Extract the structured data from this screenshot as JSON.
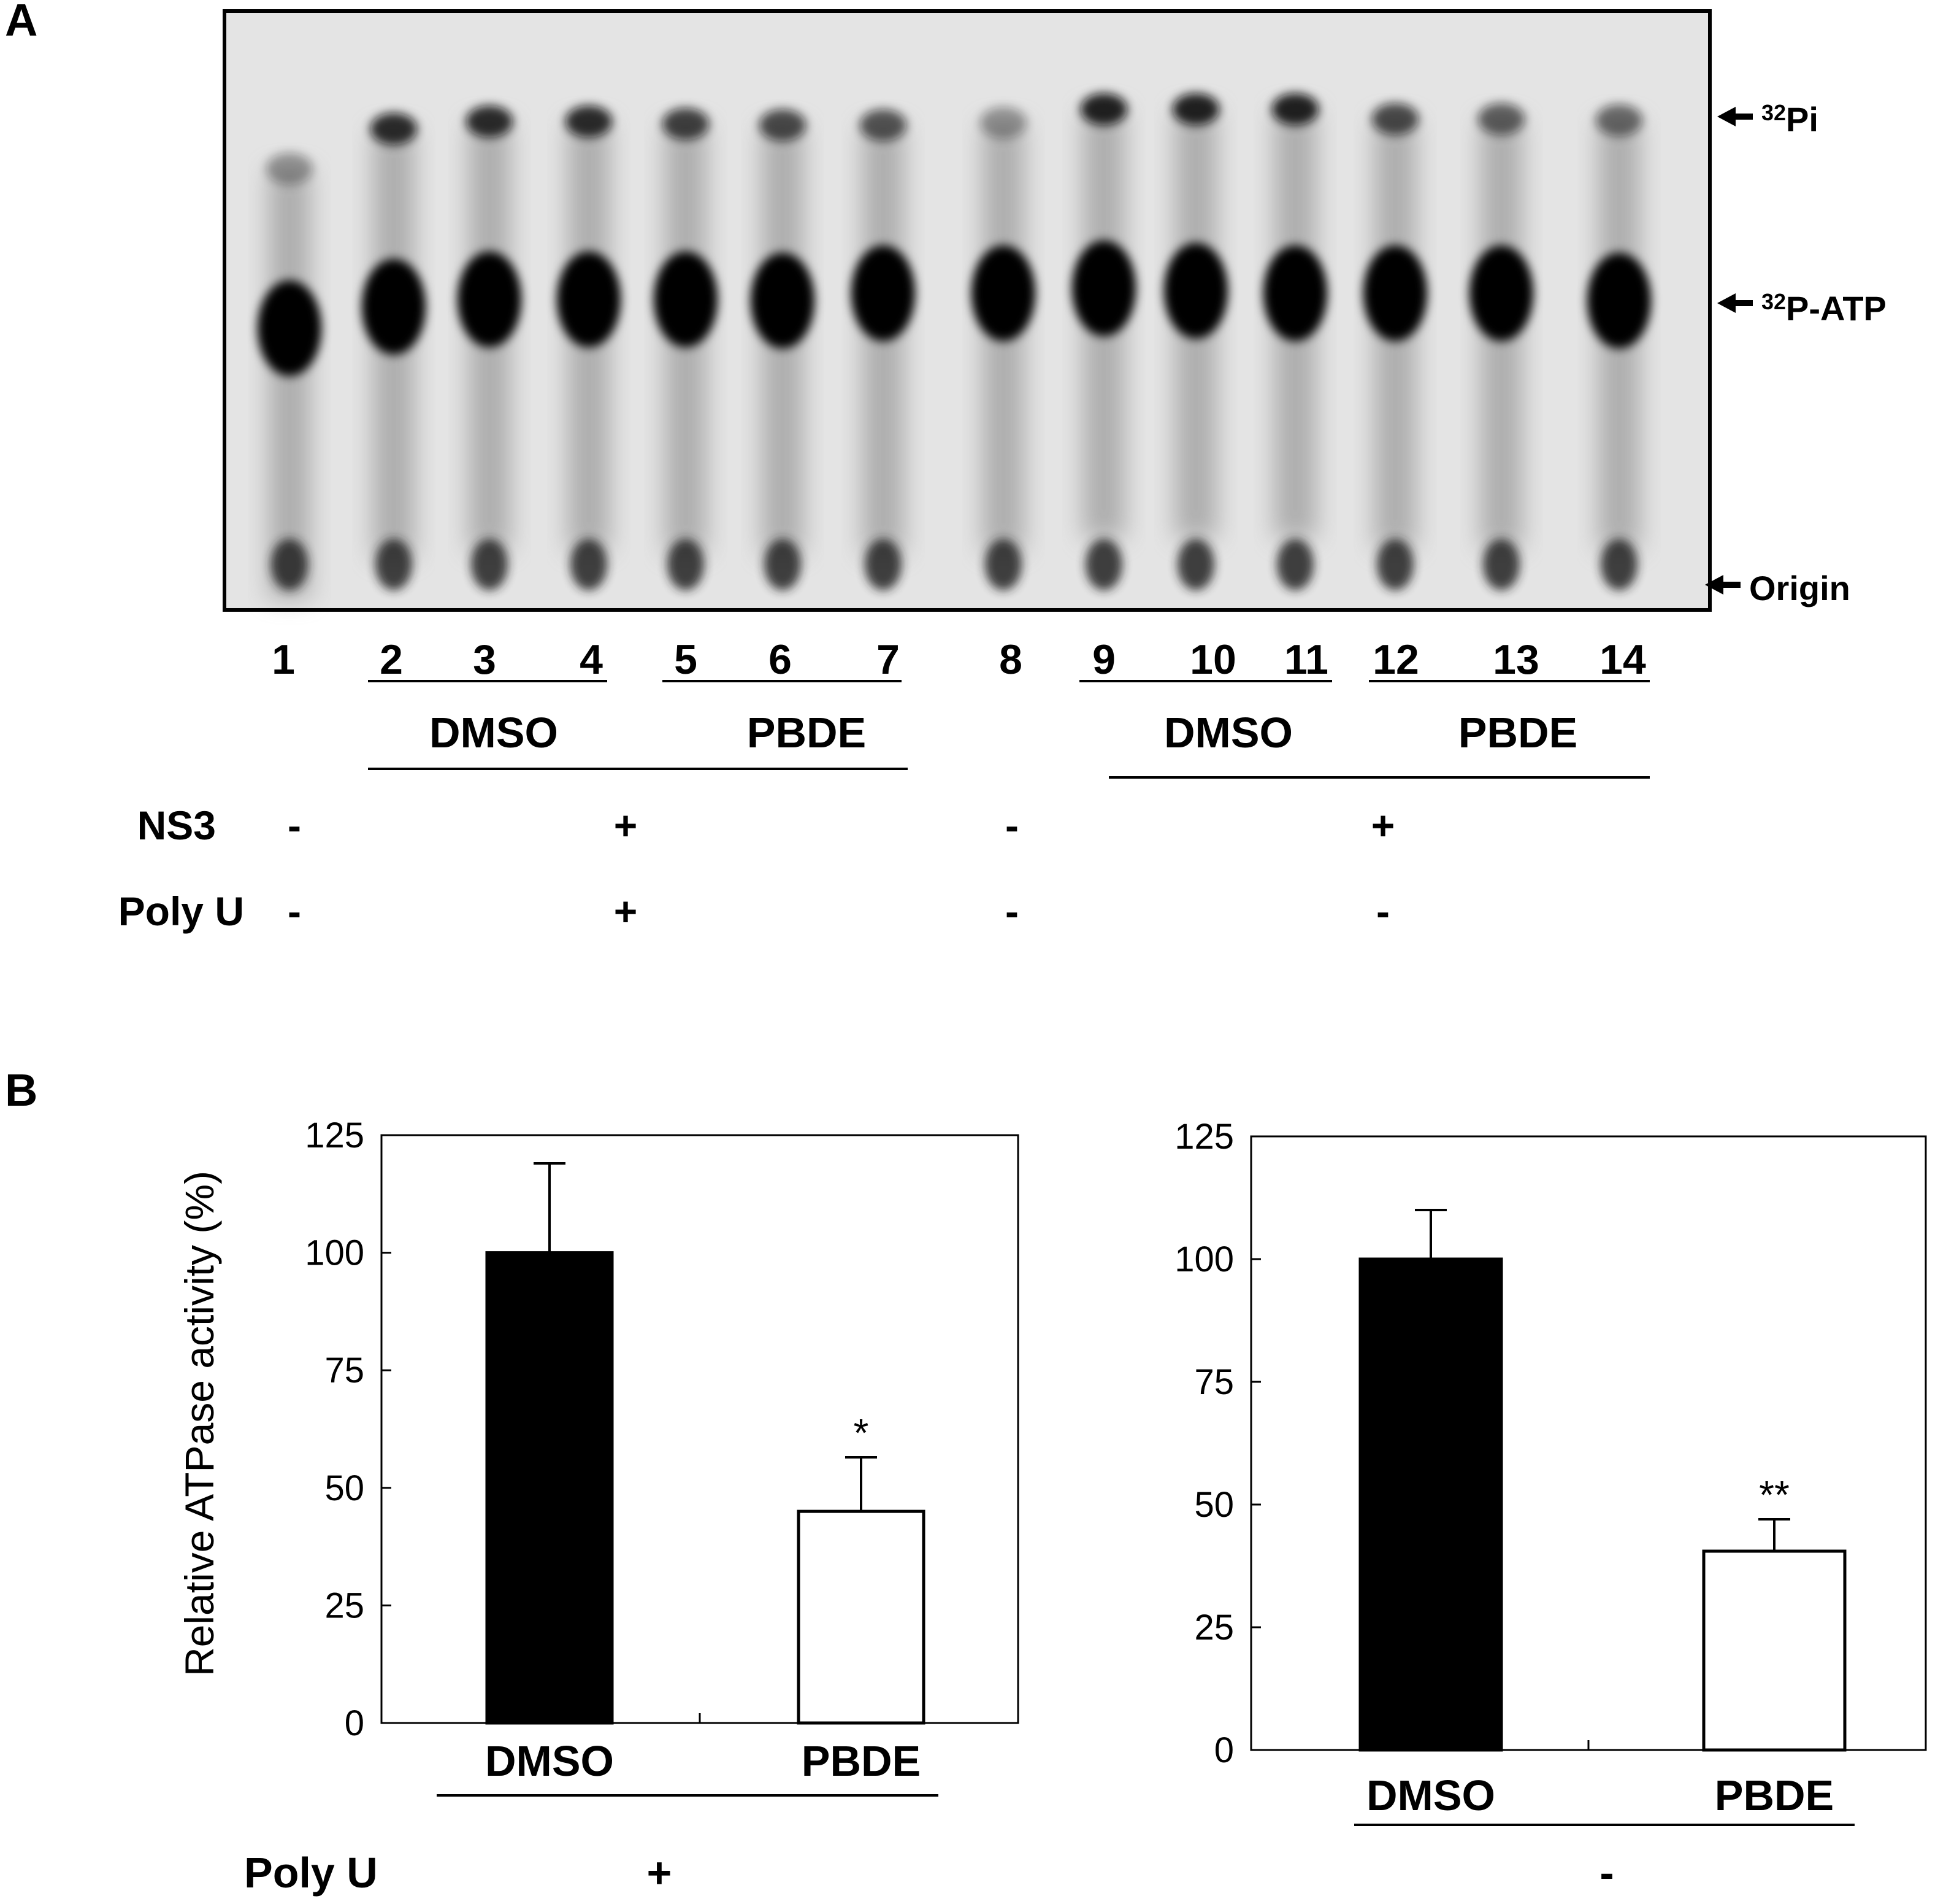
{
  "panel_a": {
    "label": "A",
    "band_labels": {
      "pi": "Pi",
      "pi_sup": "32",
      "atp": "P-ATP",
      "atp_sup": "32",
      "origin": "Origin"
    },
    "lanes": [
      "1",
      "2",
      "3",
      "4",
      "5",
      "6",
      "7",
      "8",
      "9",
      "10",
      "11",
      "12",
      "13",
      "14"
    ],
    "groups": [
      "DMSO",
      "PBDE",
      "DMSO",
      "PBDE"
    ],
    "rows": [
      {
        "label": "NS3",
        "values": [
          "-",
          "+",
          "-",
          "+"
        ]
      },
      {
        "label": "Poly U",
        "values": [
          "-",
          "+",
          "-",
          "-"
        ]
      }
    ]
  },
  "panel_b": {
    "label": "B",
    "ylabel": "Relative ATPase activity (%)",
    "poly_u_label": "Poly U",
    "poly_u_values": [
      "+",
      "-"
    ]
  },
  "chart_data": [
    {
      "type": "bar",
      "categories": [
        "DMSO",
        "PBDE"
      ],
      "values": [
        100,
        45
      ],
      "errors": [
        19,
        11.5
      ],
      "annotations": [
        "",
        "*"
      ],
      "ylabel": "Relative ATPase activity (%)",
      "ylim": [
        0,
        125
      ],
      "yticks": [
        "0",
        "25",
        "50",
        "75",
        "100",
        "125"
      ],
      "bar_colors": [
        "#000000",
        "#ffffff"
      ],
      "grid": false
    },
    {
      "type": "bar",
      "categories": [
        "DMSO",
        "PBDE"
      ],
      "values": [
        100,
        40.5
      ],
      "errors": [
        10,
        6.5
      ],
      "annotations": [
        "",
        "**"
      ],
      "ylim": [
        0,
        125
      ],
      "yticks": [
        "0",
        "25",
        "50",
        "75",
        "100",
        "125"
      ],
      "bar_colors": [
        "#000000",
        "#ffffff"
      ],
      "grid": false
    }
  ]
}
